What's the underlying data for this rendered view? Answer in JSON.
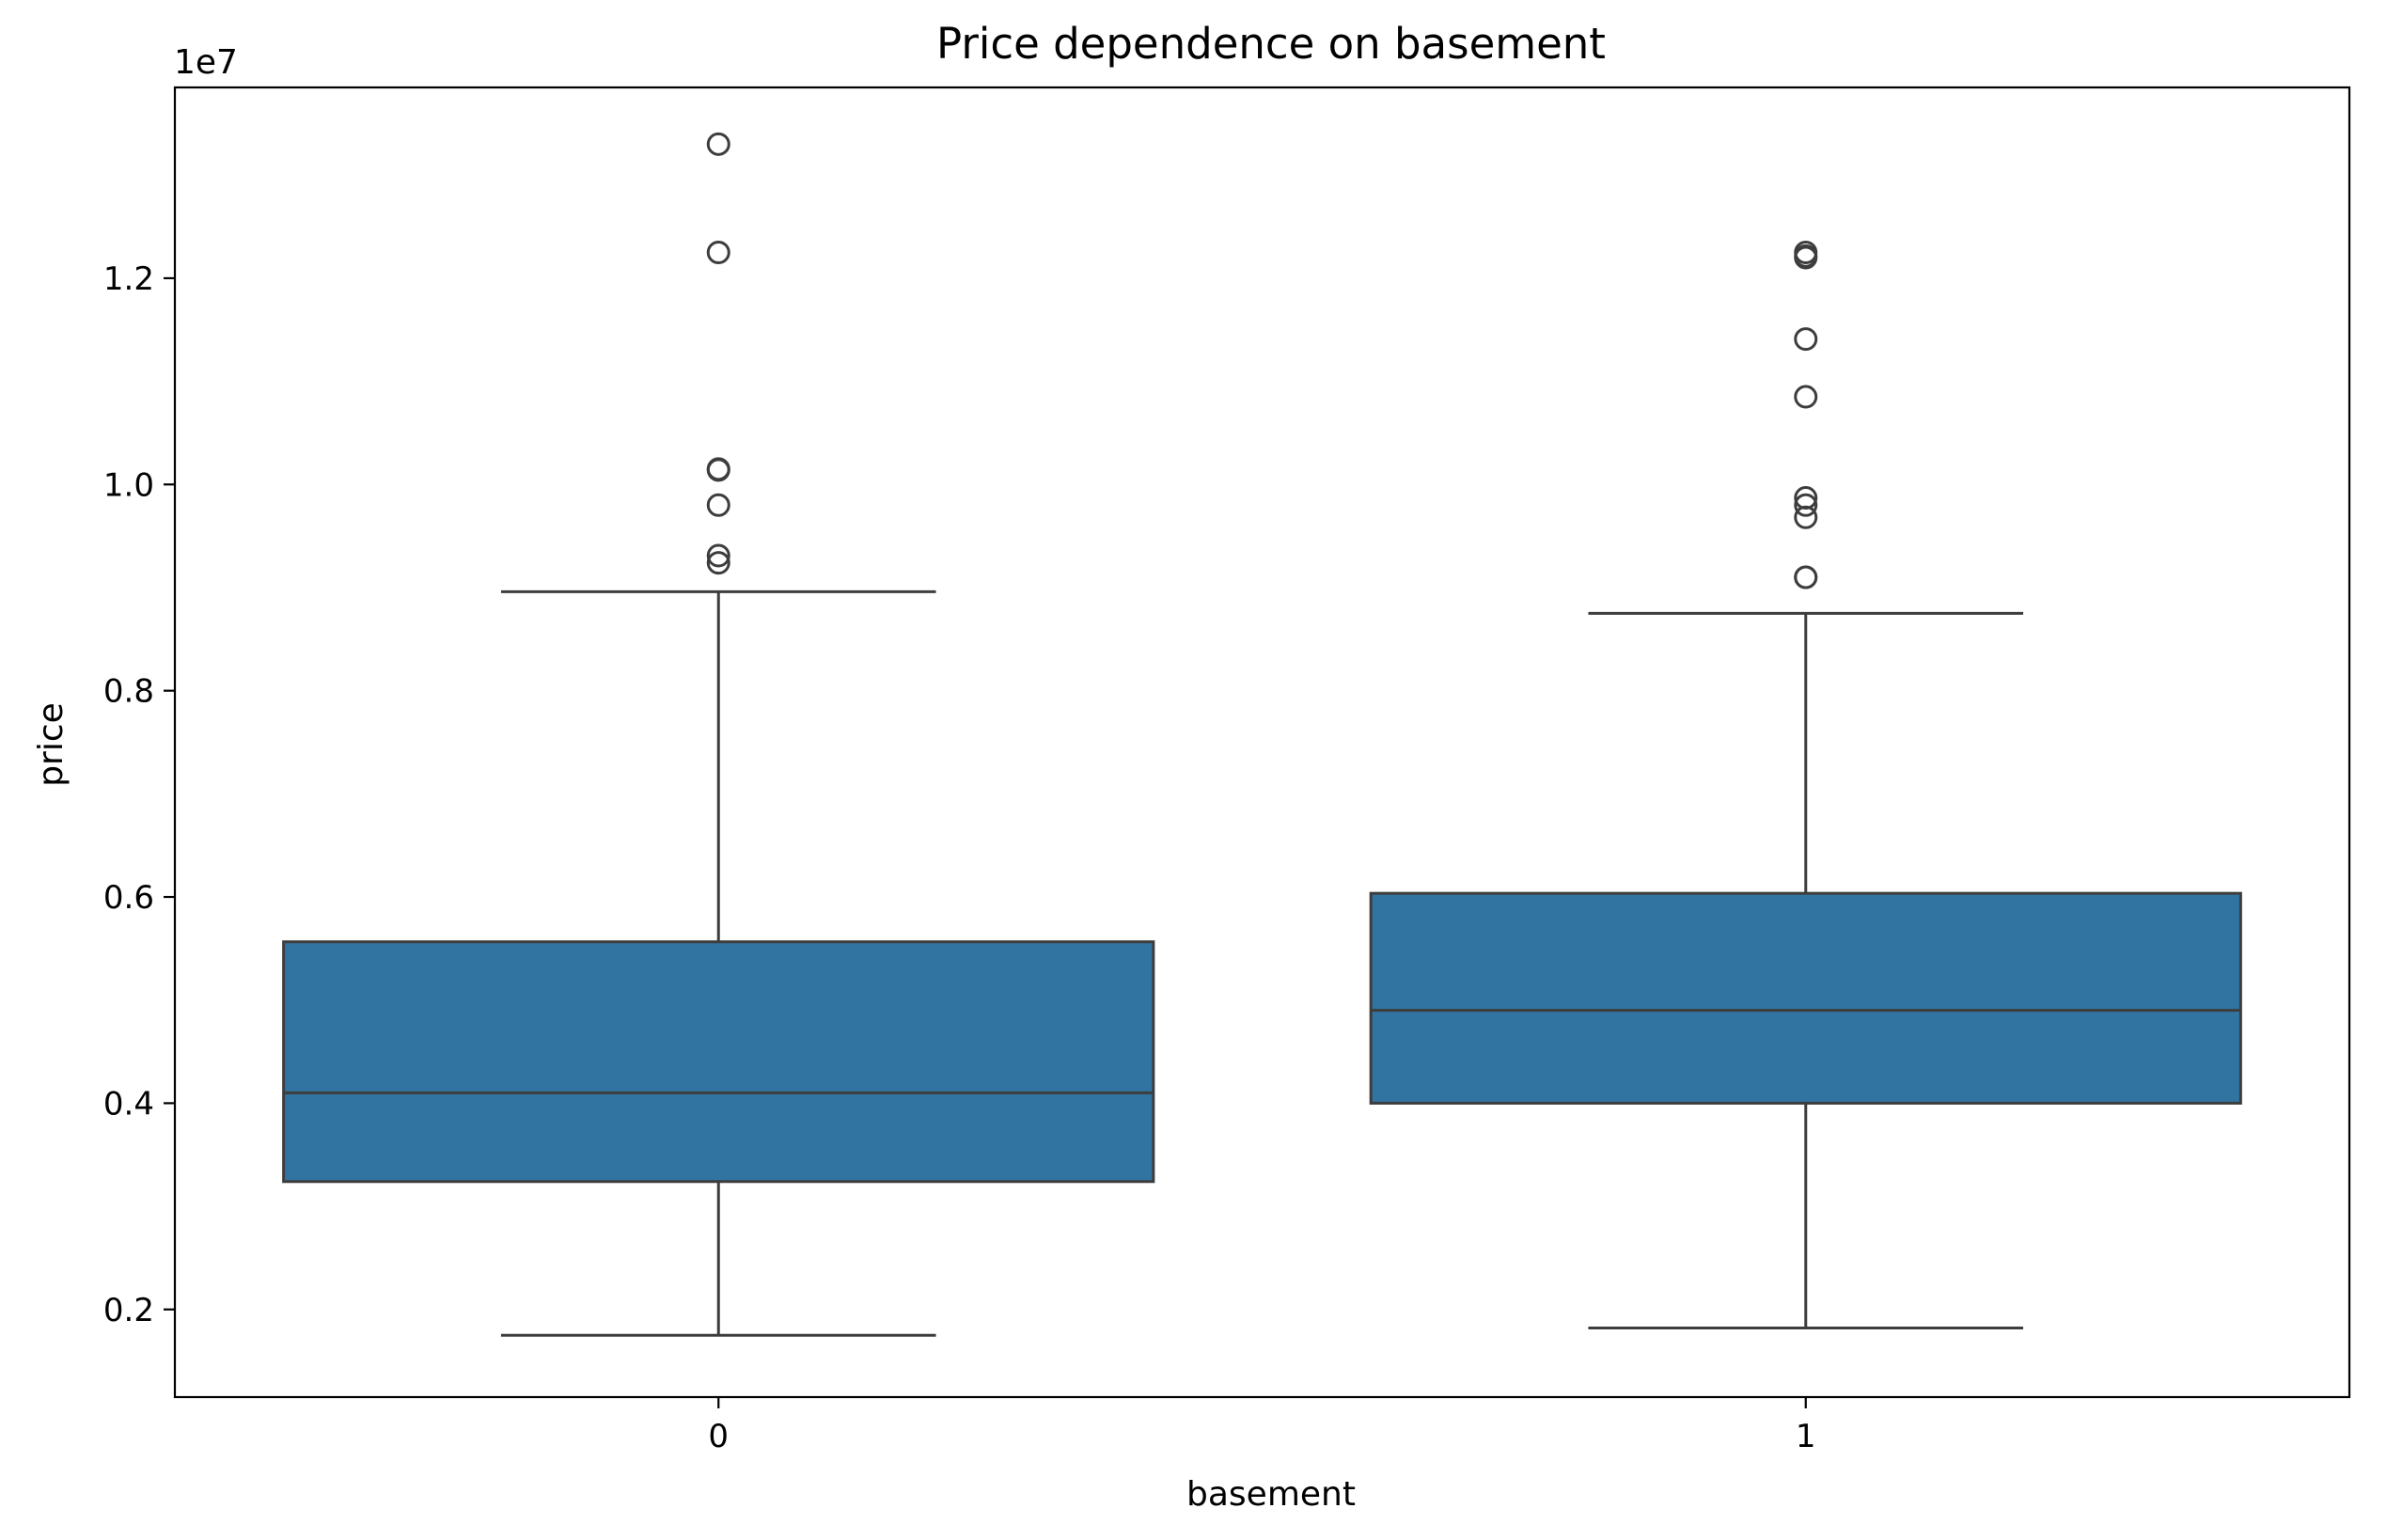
{
  "chart_data": {
    "type": "box",
    "title": "Price dependence on basement",
    "xlabel": "basement",
    "ylabel": "price",
    "y_offset_label": "1e7",
    "ylim": [
      1.15,
      13.85
    ],
    "y_ticks": [
      0.2,
      0.4,
      0.6,
      0.8,
      1.0,
      1.2
    ],
    "y_tick_labels": [
      "0.2",
      "0.4",
      "0.6",
      "0.8",
      "1.0",
      "1.2"
    ],
    "grid": false,
    "box_color": "#3274a1",
    "line_color": "#3d3d3d",
    "categories": [
      "0",
      "1"
    ],
    "boxes": [
      {
        "category": "0",
        "whisker_low": 1.75,
        "q1": 3.24,
        "median": 4.1,
        "q3": 5.565,
        "whisker_high": 8.96,
        "outliers": [
          13.3,
          12.25,
          10.15,
          10.14,
          9.8,
          9.31,
          9.24
        ]
      },
      {
        "category": "1",
        "whisker_low": 1.82,
        "q1": 4.0,
        "median": 4.9,
        "q3": 6.035,
        "whisker_high": 8.75,
        "outliers": [
          12.25,
          12.215,
          12.2,
          11.41,
          10.85,
          9.87,
          9.8,
          9.681,
          9.1,
          9.1
        ]
      }
    ]
  }
}
